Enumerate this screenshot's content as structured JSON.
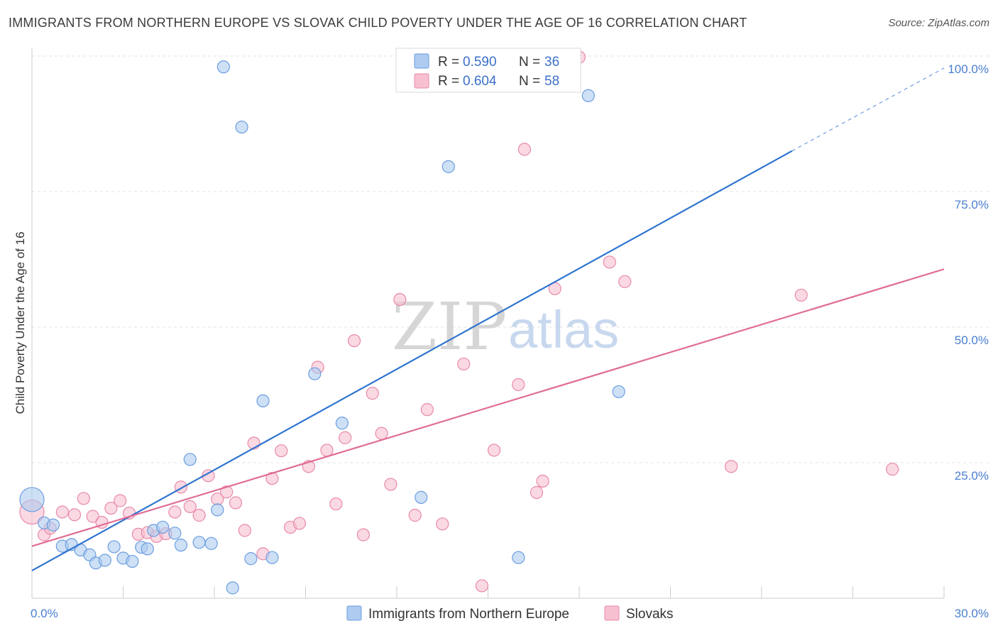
{
  "title": "IMMIGRANTS FROM NORTHERN EUROPE VS SLOVAK CHILD POVERTY UNDER THE AGE OF 16 CORRELATION CHART",
  "source": "Source: ZipAtlas.com",
  "watermark": {
    "zip": "ZIP",
    "atlas": "atlas"
  },
  "colors": {
    "blue_fill": "#aecbf0",
    "blue_stroke": "#6b9edf",
    "blue_line": "#2f74d0",
    "pink_fill": "#f7c0d0",
    "pink_stroke": "#e88aa8",
    "pink_line": "#e06c95",
    "grid": "#e3e3e3",
    "tick_text": "#4a7fd0"
  },
  "legend_box": {
    "rows": [
      {
        "r_label": "R =",
        "r_value": "0.590",
        "n_label": "N =",
        "n_value": "36"
      },
      {
        "r_label": "R =",
        "r_value": "0.604",
        "n_label": "N =",
        "n_value": "58"
      }
    ]
  },
  "bottom_legend": [
    "Immigrants from Northern Europe",
    "Slovaks"
  ],
  "chart_data": {
    "type": "scatter",
    "xlabel": "",
    "ylabel": "Child Poverty Under the Age of 16",
    "xlim": [
      0,
      30
    ],
    "ylim": [
      0,
      100
    ],
    "x_tick_labels": [
      "0.0%",
      "30.0%"
    ],
    "y_tick_labels": [
      "100.0%",
      "75.0%",
      "50.0%",
      "25.0%"
    ],
    "y_tick_values": [
      100,
      75,
      50,
      25
    ],
    "grid": true,
    "legend_position": "top-center",
    "series": [
      {
        "name": "Immigrants from Northern Europe",
        "color": "blue",
        "trend": {
          "x": [
            0,
            25
          ],
          "y": [
            5.1,
            82.5
          ],
          "dashed_to": [
            30,
            97.8
          ]
        },
        "points": [
          [
            0.0,
            18.2,
            "large"
          ],
          [
            0.4,
            13.9
          ],
          [
            0.7,
            13.5
          ],
          [
            1.0,
            9.6
          ],
          [
            1.3,
            9.9
          ],
          [
            1.6,
            8.9
          ],
          [
            1.9,
            8.0
          ],
          [
            2.1,
            6.5
          ],
          [
            2.4,
            7.0
          ],
          [
            2.7,
            9.5
          ],
          [
            3.0,
            7.4
          ],
          [
            3.3,
            6.8
          ],
          [
            3.6,
            9.4
          ],
          [
            3.8,
            9.1
          ],
          [
            4.0,
            12.5
          ],
          [
            4.3,
            13.1
          ],
          [
            4.7,
            12.0
          ],
          [
            4.9,
            9.8
          ],
          [
            5.2,
            25.6
          ],
          [
            5.5,
            10.3
          ],
          [
            5.9,
            10.1
          ],
          [
            6.1,
            16.3
          ],
          [
            6.3,
            98.0
          ],
          [
            6.6,
            1.9
          ],
          [
            6.9,
            86.9
          ],
          [
            7.2,
            7.3
          ],
          [
            7.6,
            36.4
          ],
          [
            7.9,
            7.5
          ],
          [
            9.3,
            41.4
          ],
          [
            10.2,
            32.3
          ],
          [
            12.8,
            18.6
          ],
          [
            13.7,
            79.6
          ],
          [
            16.0,
            7.5
          ],
          [
            16.7,
            98.0
          ],
          [
            18.3,
            92.7
          ],
          [
            19.3,
            38.1
          ]
        ]
      },
      {
        "name": "Slovaks",
        "color": "pink",
        "trend": {
          "x": [
            0,
            30
          ],
          "y": [
            9.6,
            60.7
          ]
        },
        "points": [
          [
            0.0,
            15.9,
            "large"
          ],
          [
            0.4,
            11.7
          ],
          [
            0.6,
            12.9
          ],
          [
            1.0,
            15.9
          ],
          [
            1.4,
            15.4
          ],
          [
            1.7,
            18.4
          ],
          [
            2.0,
            15.1
          ],
          [
            2.3,
            14.0
          ],
          [
            2.6,
            16.6
          ],
          [
            2.9,
            18.0
          ],
          [
            3.2,
            15.7
          ],
          [
            3.5,
            11.8
          ],
          [
            3.8,
            12.1
          ],
          [
            4.1,
            11.4
          ],
          [
            4.4,
            11.9
          ],
          [
            4.7,
            15.9
          ],
          [
            4.9,
            20.5
          ],
          [
            5.2,
            16.9
          ],
          [
            5.5,
            15.3
          ],
          [
            5.8,
            22.6
          ],
          [
            6.1,
            18.3
          ],
          [
            6.4,
            19.6
          ],
          [
            6.7,
            17.6
          ],
          [
            7.0,
            12.5
          ],
          [
            7.3,
            28.6
          ],
          [
            7.6,
            8.2
          ],
          [
            7.9,
            22.1
          ],
          [
            8.2,
            27.2
          ],
          [
            8.5,
            13.1
          ],
          [
            8.8,
            13.8
          ],
          [
            9.1,
            24.3
          ],
          [
            9.4,
            42.6
          ],
          [
            9.7,
            27.3
          ],
          [
            10.0,
            17.4
          ],
          [
            10.3,
            29.6
          ],
          [
            10.6,
            47.5
          ],
          [
            10.9,
            11.7
          ],
          [
            11.2,
            37.8
          ],
          [
            11.5,
            30.4
          ],
          [
            11.8,
            21.0
          ],
          [
            12.1,
            55.1
          ],
          [
            12.6,
            15.3
          ],
          [
            13.0,
            34.8
          ],
          [
            13.5,
            13.7
          ],
          [
            14.2,
            43.2
          ],
          [
            14.8,
            2.3
          ],
          [
            15.2,
            27.3
          ],
          [
            16.0,
            39.4
          ],
          [
            16.2,
            82.8
          ],
          [
            16.6,
            19.5
          ],
          [
            16.8,
            21.6
          ],
          [
            17.2,
            57.1
          ],
          [
            18.0,
            99.8
          ],
          [
            19.0,
            62.0
          ],
          [
            19.5,
            58.4
          ],
          [
            23.0,
            24.3
          ],
          [
            25.3,
            55.9
          ],
          [
            28.3,
            23.8
          ]
        ]
      }
    ]
  }
}
